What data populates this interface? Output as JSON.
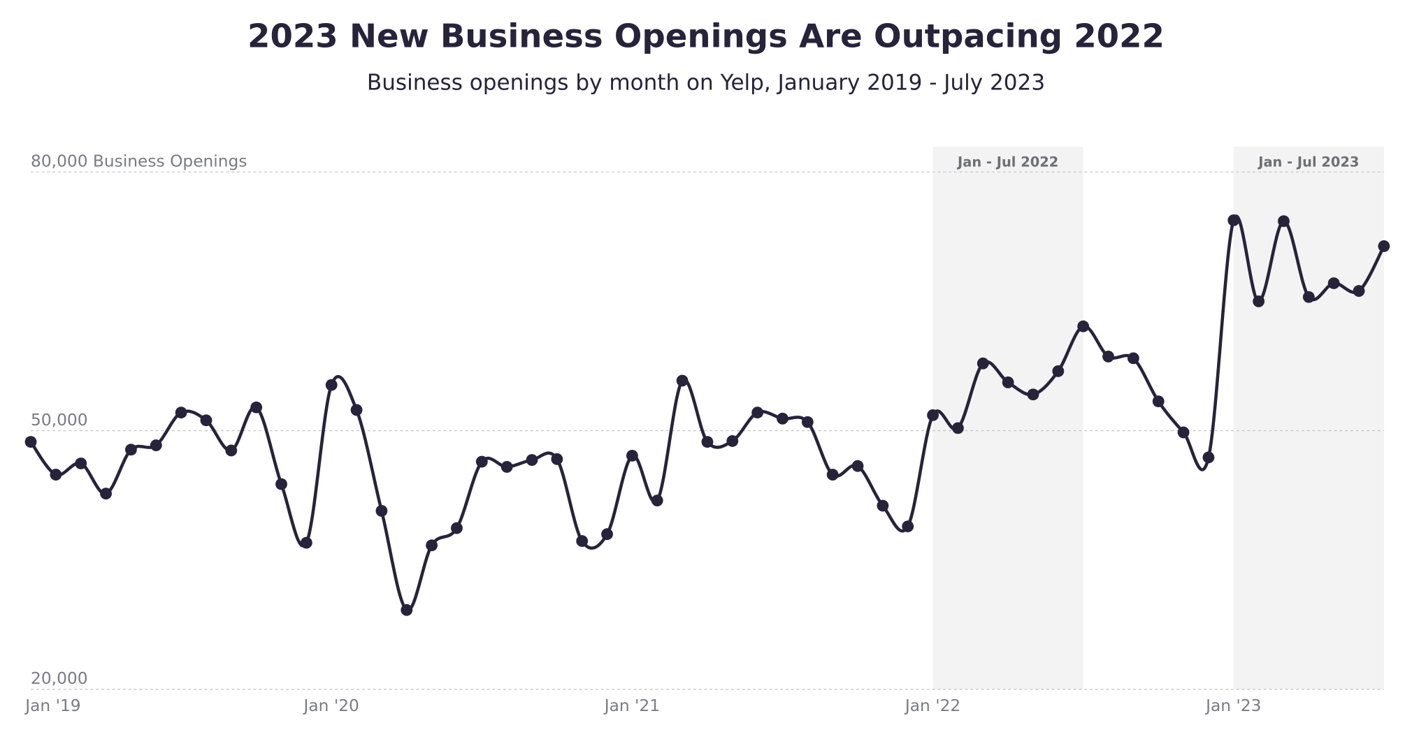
{
  "chart_data": {
    "type": "line",
    "title": "2023 New Business Openings Are Outpacing 2022",
    "subtitle": "Business openings by month on Yelp, January 2019 - July 2023",
    "categories": [
      "Jan '19",
      null,
      null,
      null,
      null,
      null,
      null,
      null,
      null,
      null,
      null,
      null,
      "Jan '20",
      null,
      null,
      null,
      null,
      null,
      null,
      null,
      null,
      null,
      null,
      null,
      "Jan '21",
      null,
      null,
      null,
      null,
      null,
      null,
      null,
      null,
      null,
      null,
      null,
      "Jan '22",
      null,
      null,
      null,
      null,
      null,
      null,
      null,
      null,
      null,
      null,
      null,
      "Jan '23",
      null,
      null,
      null,
      null,
      null,
      null
    ],
    "series": [
      {
        "name": "Business openings",
        "color": "#26233a",
        "values": [
          48700,
          44900,
          46200,
          42700,
          47800,
          48300,
          52100,
          51200,
          47700,
          52700,
          43800,
          37000,
          55300,
          52400,
          40700,
          29200,
          36700,
          38700,
          46400,
          45800,
          46600,
          46700,
          37200,
          38000,
          47100,
          41900,
          55800,
          48700,
          48800,
          52100,
          51400,
          51000,
          44900,
          45900,
          41300,
          38900,
          51800,
          50300,
          57800,
          55600,
          54200,
          56900,
          62100,
          58600,
          58400,
          53400,
          49800,
          46900,
          74400,
          65000,
          74300,
          65500,
          67100,
          66200,
          71400
        ]
      }
    ],
    "highlights": [
      {
        "label": "Jan - Jul 2022",
        "start": 36,
        "end": 42,
        "color": "#f3f3f3"
      },
      {
        "label": "Jan - Jul 2023",
        "start": 48,
        "end": 54,
        "color": "#f3f3f3"
      }
    ],
    "ylim": [
      20000,
      80000
    ],
    "yticks": [
      {
        "value": 20000,
        "label": "20,000"
      },
      {
        "value": 50000,
        "label": "50,000"
      },
      {
        "value": 80000,
        "label": "80,000 Business Openings"
      }
    ],
    "grid": true
  }
}
